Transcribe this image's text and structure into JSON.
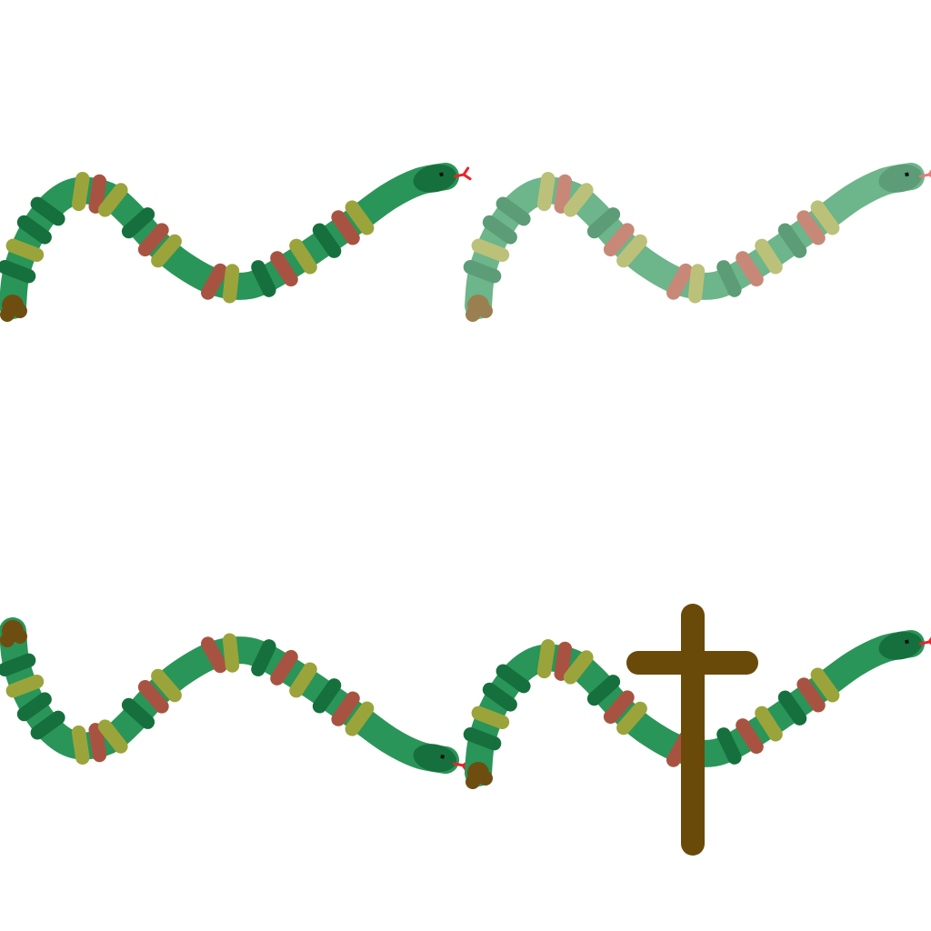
{
  "scene": {
    "background_color": "#ffffff",
    "sprites": [
      {
        "name": "snake-normal",
        "variant": "normal",
        "pose": "wave-up",
        "faded": false,
        "has_cross": false
      },
      {
        "name": "snake-faded",
        "variant": "faded",
        "pose": "wave-up",
        "faded": true,
        "has_cross": false
      },
      {
        "name": "snake-mirrored",
        "variant": "mirrored",
        "pose": "wave-down",
        "faded": false,
        "has_cross": false
      },
      {
        "name": "snake-with-cross",
        "variant": "with-cross",
        "pose": "wave-up",
        "faded": false,
        "has_cross": true
      }
    ]
  },
  "palette": {
    "body": "#2a9558",
    "dark_band": "#16703d",
    "olive_band": "#9ba43a",
    "red_band": "#a85341",
    "head": "#16703d",
    "eye": "#111111",
    "tongue": "#e8242a",
    "tail_tip": "#6e4e10",
    "cross": "#6a4a08",
    "faded_body": "#6db58a",
    "faded_dark": "#5c9c77",
    "faded_olive": "#bcc17a",
    "faded_red": "#c88878",
    "faded_tail": "#9a8050"
  },
  "icons": {
    "snake": "snake-icon",
    "cross": "cross-icon"
  }
}
